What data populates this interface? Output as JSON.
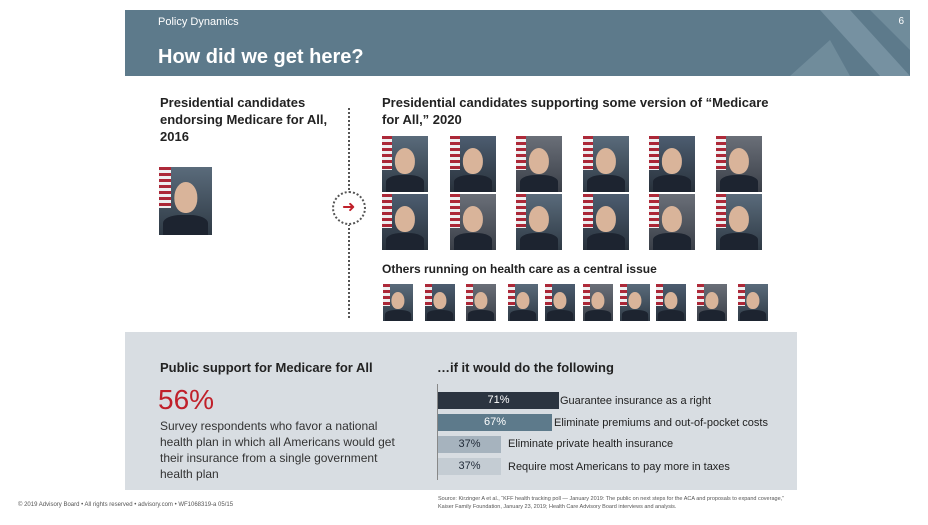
{
  "header": {
    "kicker": "Policy Dynamics",
    "title": "How did we get here?",
    "page_number": "6"
  },
  "left_block": {
    "heading": "Presidential candidates endorsing Medicare for All, 2016"
  },
  "right_block": {
    "heading": "Presidential candidates supporting some version of “Medicare for All,” 2020",
    "others_heading": "Others running on health care as a central issue"
  },
  "support": {
    "heading": "Public support for Medicare for All",
    "percent": "56%",
    "description": "Survey respondents who favor a national health plan in which all Americans would get their insurance from a single government health plan"
  },
  "following": {
    "heading": "…if it would do the following",
    "bars": [
      {
        "value": "71%",
        "label": "Guarantee insurance as a right",
        "fraction": 0.71,
        "color": "#2b3440",
        "text_color": "#ffffff"
      },
      {
        "value": "67%",
        "label": "Eliminate premiums and out-of-pocket costs",
        "fraction": 0.67,
        "color": "#5d7a8b",
        "text_color": "#ffffff"
      },
      {
        "value": "37%",
        "label": "Eliminate private health insurance",
        "fraction": 0.37,
        "color": "#a6b3be",
        "text_color": "#1f2937"
      },
      {
        "value": "37%",
        "label": "Require most Americans to pay more in taxes",
        "fraction": 0.37,
        "color": "#c4ccd3",
        "text_color": "#1f2937"
      }
    ]
  },
  "footer": {
    "left": "© 2019 Advisory Board • All rights reserved • advisory.com • WF1068319-a 05/15",
    "source": "Source: Kirzinger A et al., “KFF health tracking poll — January 2019: The public on next steps for the ACA and proposals to expand coverage,” Kaiser Family Foundation, January 23, 2019; Health Care Advisory Board interviews and analysis."
  },
  "colors": {
    "header": "#5d7a8b",
    "accent_red": "#c0202a",
    "panel": "#d8dde2"
  },
  "icons": {
    "arrow": "right-arrow-icon",
    "logo": "advisory-board-logo"
  }
}
